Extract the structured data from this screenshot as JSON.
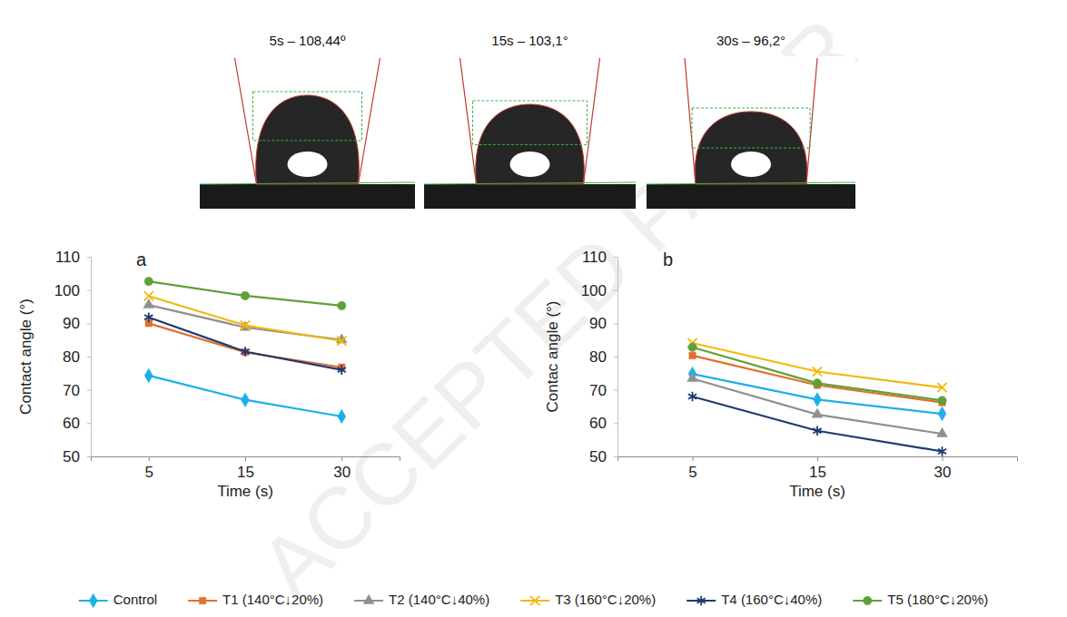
{
  "watermark": "ACCEPTED PAPER",
  "images": [
    {
      "label": "5s – 108,44º"
    },
    {
      "label": "15s – 103,1°"
    },
    {
      "label": "30s – 96,2°"
    }
  ],
  "chart_data": [
    {
      "type": "line",
      "title": "a",
      "x_label": "Time (s)",
      "y_label": "Contact angle (°)",
      "categories": [
        "5",
        "15",
        "30"
      ],
      "ylim": [
        50,
        110
      ],
      "yticks": [
        50,
        60,
        70,
        80,
        90,
        100,
        110
      ],
      "grid": false,
      "legend": "bottom",
      "series": [
        {
          "name": "Control",
          "color": "#1cb0e8",
          "marker": "diamond",
          "values": [
            74.3,
            67.0,
            62.0
          ]
        },
        {
          "name": "T1 (140°C↓20%)",
          "color": "#e0702b",
          "marker": "square",
          "values": [
            90.0,
            81.3,
            76.8
          ]
        },
        {
          "name": "T2 (140°C↓40%)",
          "color": "#909090",
          "marker": "triangle",
          "values": [
            95.5,
            88.8,
            85.0
          ]
        },
        {
          "name": "T3 (160°C↓20%)",
          "color": "#f2b80c",
          "marker": "x",
          "values": [
            98.2,
            89.4,
            84.7
          ]
        },
        {
          "name": "T4 (160°C↓40%)",
          "color": "#1f3a70",
          "marker": "asterisk",
          "values": [
            91.8,
            81.5,
            76.0
          ]
        },
        {
          "name": "T5 (180°C↓20%)",
          "color": "#5fa038",
          "marker": "circle",
          "values": [
            102.6,
            98.3,
            95.3
          ]
        }
      ]
    },
    {
      "type": "line",
      "title": "b",
      "x_label": "Time (s)",
      "y_label": "Contac angle (°)",
      "categories": [
        "5",
        "15",
        "30"
      ],
      "ylim": [
        50,
        110
      ],
      "yticks": [
        50,
        60,
        70,
        80,
        90,
        100,
        110
      ],
      "grid": false,
      "series": [
        {
          "name": "Control",
          "color": "#1cb0e8",
          "marker": "diamond",
          "values": [
            74.8,
            67.1,
            62.8
          ]
        },
        {
          "name": "T1 (140°C↓20%)",
          "color": "#e0702b",
          "marker": "square",
          "values": [
            80.3,
            71.4,
            66.2
          ]
        },
        {
          "name": "T2 (140°C↓40%)",
          "color": "#909090",
          "marker": "triangle",
          "values": [
            73.4,
            62.6,
            56.8
          ]
        },
        {
          "name": "T3 (160°C↓20%)",
          "color": "#f2b80c",
          "marker": "x",
          "values": [
            84.1,
            75.5,
            70.7
          ]
        },
        {
          "name": "T4 (160°C↓40%)",
          "color": "#1f3a70",
          "marker": "asterisk",
          "values": [
            68.0,
            57.7,
            51.5
          ]
        },
        {
          "name": "T5 (180°C↓20%)",
          "color": "#5fa038",
          "marker": "circle",
          "values": [
            82.8,
            72.0,
            66.8
          ]
        }
      ]
    }
  ]
}
